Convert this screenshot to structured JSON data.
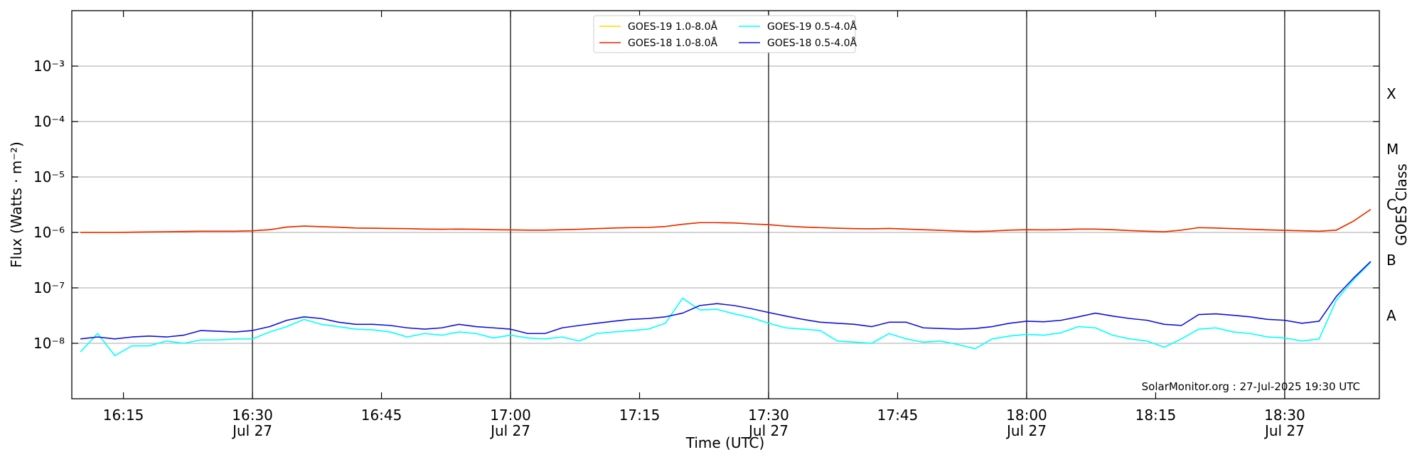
{
  "chart_data": {
    "type": "line",
    "ylabel": "Flux (Watts · m⁻²)",
    "xlabel": "Time (UTC)",
    "y2label": "GOES Class",
    "annotation": "SolarMonitor.org : 27-Jul-2025 19:30 UTC",
    "log_scale": true,
    "grid": true,
    "legend": "upper center",
    "xlim": [
      "16:09",
      "18:41"
    ],
    "xticks": [
      {
        "value": "16:15",
        "label": [
          "16:15"
        ]
      },
      {
        "value": "16:30",
        "label": [
          "16:30",
          "Jul 27"
        ]
      },
      {
        "value": "16:45",
        "label": [
          "16:45"
        ]
      },
      {
        "value": "17:00",
        "label": [
          "17:00",
          "Jul 27"
        ]
      },
      {
        "value": "17:15",
        "label": [
          "17:15"
        ]
      },
      {
        "value": "17:30",
        "label": [
          "17:30",
          "Jul 27"
        ]
      },
      {
        "value": "17:45",
        "label": [
          "17:45"
        ]
      },
      {
        "value": "18:00",
        "label": [
          "18:00",
          "Jul 27"
        ]
      },
      {
        "value": "18:15",
        "label": [
          "18:15"
        ]
      },
      {
        "value": "18:30",
        "label": [
          "18:30",
          "Jul 27"
        ]
      }
    ],
    "ylim": [
      1e-09,
      0.01
    ],
    "yticks": [
      {
        "value": 1e-08,
        "label": "10⁻⁸"
      },
      {
        "value": 1e-07,
        "label": "10⁻⁷"
      },
      {
        "value": 1e-06,
        "label": "10⁻⁶"
      },
      {
        "value": 1e-05,
        "label": "10⁻⁵"
      },
      {
        "value": 0.0001,
        "label": "10⁻⁴"
      },
      {
        "value": 0.001,
        "label": "10⁻³"
      }
    ],
    "y2lim": [
      1e-09,
      0.01
    ],
    "y2ticks": [
      {
        "value": 3.16e-08,
        "label": "A"
      },
      {
        "value": 3.16e-07,
        "label": "B"
      },
      {
        "value": 3.16e-06,
        "label": "C"
      },
      {
        "value": 3.16e-05,
        "label": "M"
      },
      {
        "value": 0.000316,
        "label": "X"
      }
    ],
    "x": [
      "16:10",
      "16:12",
      "16:14",
      "16:16",
      "16:18",
      "16:20",
      "16:22",
      "16:24",
      "16:26",
      "16:28",
      "16:30",
      "16:32",
      "16:34",
      "16:36",
      "16:38",
      "16:40",
      "16:42",
      "16:44",
      "16:46",
      "16:48",
      "16:50",
      "16:52",
      "16:54",
      "16:56",
      "16:58",
      "17:00",
      "17:02",
      "17:04",
      "17:06",
      "17:08",
      "17:10",
      "17:12",
      "17:14",
      "17:16",
      "17:18",
      "17:20",
      "17:22",
      "17:24",
      "17:26",
      "17:28",
      "17:30",
      "17:32",
      "17:34",
      "17:36",
      "17:38",
      "17:40",
      "17:42",
      "17:44",
      "17:46",
      "17:48",
      "17:50",
      "17:52",
      "17:54",
      "17:56",
      "17:58",
      "18:00",
      "18:02",
      "18:04",
      "18:06",
      "18:08",
      "18:10",
      "18:12",
      "18:14",
      "18:16",
      "18:18",
      "18:20",
      "18:22",
      "18:24",
      "18:26",
      "18:28",
      "18:30",
      "18:32",
      "18:34",
      "18:36",
      "18:38",
      "18:40"
    ],
    "series": [
      {
        "name": "GOES-19 1.0-8.0Å",
        "color": "#ffd700",
        "values": [
          1e-06,
          1e-06,
          1e-06,
          1.01e-06,
          1.02e-06,
          1.03e-06,
          1.04e-06,
          1.05e-06,
          1.05e-06,
          1.05e-06,
          1.07e-06,
          1.12e-06,
          1.25e-06,
          1.3e-06,
          1.27e-06,
          1.24e-06,
          1.2e-06,
          1.19e-06,
          1.18e-06,
          1.17e-06,
          1.15e-06,
          1.14e-06,
          1.15e-06,
          1.14e-06,
          1.12e-06,
          1.11e-06,
          1.1e-06,
          1.1e-06,
          1.12e-06,
          1.14e-06,
          1.17e-06,
          1.2e-06,
          1.22e-06,
          1.23e-06,
          1.28e-06,
          1.4e-06,
          1.5e-06,
          1.5e-06,
          1.48e-06,
          1.42e-06,
          1.38e-06,
          1.3e-06,
          1.25e-06,
          1.22e-06,
          1.19e-06,
          1.17e-06,
          1.16e-06,
          1.18e-06,
          1.15e-06,
          1.12e-06,
          1.09e-06,
          1.06e-06,
          1.04e-06,
          1.06e-06,
          1.1e-06,
          1.12e-06,
          1.11e-06,
          1.12e-06,
          1.15e-06,
          1.15e-06,
          1.12e-06,
          1.08e-06,
          1.05e-06,
          1.03e-06,
          1.1e-06,
          1.22e-06,
          1.2e-06,
          1.17e-06,
          1.14e-06,
          1.11e-06,
          1.09e-06,
          1.07e-06,
          1.05e-06,
          1.1e-06,
          1.6e-06,
          2.6e-06
        ]
      },
      {
        "name": "GOES-18 1.0-8.0Å",
        "color": "#ee2200",
        "values": [
          1e-06,
          1e-06,
          1e-06,
          1.01e-06,
          1.02e-06,
          1.03e-06,
          1.04e-06,
          1.05e-06,
          1.05e-06,
          1.05e-06,
          1.07e-06,
          1.12e-06,
          1.25e-06,
          1.3e-06,
          1.27e-06,
          1.24e-06,
          1.2e-06,
          1.19e-06,
          1.18e-06,
          1.17e-06,
          1.15e-06,
          1.14e-06,
          1.15e-06,
          1.14e-06,
          1.12e-06,
          1.11e-06,
          1.1e-06,
          1.1e-06,
          1.12e-06,
          1.14e-06,
          1.17e-06,
          1.2e-06,
          1.22e-06,
          1.23e-06,
          1.28e-06,
          1.4e-06,
          1.5e-06,
          1.5e-06,
          1.48e-06,
          1.42e-06,
          1.38e-06,
          1.3e-06,
          1.25e-06,
          1.22e-06,
          1.19e-06,
          1.17e-06,
          1.16e-06,
          1.18e-06,
          1.15e-06,
          1.12e-06,
          1.09e-06,
          1.06e-06,
          1.04e-06,
          1.06e-06,
          1.1e-06,
          1.12e-06,
          1.11e-06,
          1.12e-06,
          1.15e-06,
          1.15e-06,
          1.12e-06,
          1.08e-06,
          1.05e-06,
          1.03e-06,
          1.1e-06,
          1.22e-06,
          1.2e-06,
          1.17e-06,
          1.14e-06,
          1.11e-06,
          1.09e-06,
          1.07e-06,
          1.05e-06,
          1.1e-06,
          1.6e-06,
          2.6e-06
        ]
      },
      {
        "name": "GOES-19 0.5-4.0Å",
        "color": "#00ffff",
        "values": [
          7e-09,
          1.5e-08,
          6e-09,
          9e-09,
          9e-09,
          1.1e-08,
          1e-08,
          1.15e-08,
          1.15e-08,
          1.2e-08,
          1.2e-08,
          1.6e-08,
          2e-08,
          2.7e-08,
          2.2e-08,
          2e-08,
          1.8e-08,
          1.75e-08,
          1.6e-08,
          1.3e-08,
          1.5e-08,
          1.4e-08,
          1.6e-08,
          1.5e-08,
          1.25e-08,
          1.4e-08,
          1.25e-08,
          1.2e-08,
          1.3e-08,
          1.1e-08,
          1.5e-08,
          1.6e-08,
          1.7e-08,
          1.8e-08,
          2.3e-08,
          6.5e-08,
          4e-08,
          4.1e-08,
          3.4e-08,
          2.9e-08,
          2.3e-08,
          1.9e-08,
          1.8e-08,
          1.7e-08,
          1.1e-08,
          1.05e-08,
          1e-08,
          1.5e-08,
          1.2e-08,
          1.05e-08,
          1.1e-08,
          9.5e-09,
          8e-09,
          1.2e-08,
          1.35e-08,
          1.45e-08,
          1.4e-08,
          1.55e-08,
          2e-08,
          1.9e-08,
          1.4e-08,
          1.2e-08,
          1.1e-08,
          8.5e-09,
          1.2e-08,
          1.8e-08,
          1.9e-08,
          1.6e-08,
          1.5e-08,
          1.3e-08,
          1.25e-08,
          1.1e-08,
          1.2e-08,
          6e-08,
          1.4e-07,
          2.9e-07
        ]
      },
      {
        "name": "GOES-18 0.5-4.0Å",
        "color": "#1010dd",
        "values": [
          1.2e-08,
          1.3e-08,
          1.2e-08,
          1.3e-08,
          1.35e-08,
          1.3e-08,
          1.4e-08,
          1.7e-08,
          1.65e-08,
          1.6e-08,
          1.7e-08,
          2e-08,
          2.6e-08,
          3e-08,
          2.8e-08,
          2.4e-08,
          2.2e-08,
          2.2e-08,
          2.1e-08,
          1.9e-08,
          1.8e-08,
          1.9e-08,
          2.2e-08,
          2e-08,
          1.9e-08,
          1.8e-08,
          1.5e-08,
          1.5e-08,
          1.9e-08,
          2.1e-08,
          2.3e-08,
          2.5e-08,
          2.7e-08,
          2.8e-08,
          3e-08,
          3.5e-08,
          4.8e-08,
          5.2e-08,
          4.8e-08,
          4.2e-08,
          3.6e-08,
          3.1e-08,
          2.7e-08,
          2.4e-08,
          2.3e-08,
          2.2e-08,
          2e-08,
          2.4e-08,
          2.4e-08,
          1.9e-08,
          1.85e-08,
          1.8e-08,
          1.85e-08,
          2e-08,
          2.3e-08,
          2.5e-08,
          2.45e-08,
          2.6e-08,
          3e-08,
          3.5e-08,
          3.1e-08,
          2.8e-08,
          2.6e-08,
          2.2e-08,
          2.1e-08,
          3.3e-08,
          3.4e-08,
          3.2e-08,
          3e-08,
          2.7e-08,
          2.6e-08,
          2.3e-08,
          2.5e-08,
          7e-08,
          1.5e-07,
          3e-07
        ]
      }
    ]
  }
}
